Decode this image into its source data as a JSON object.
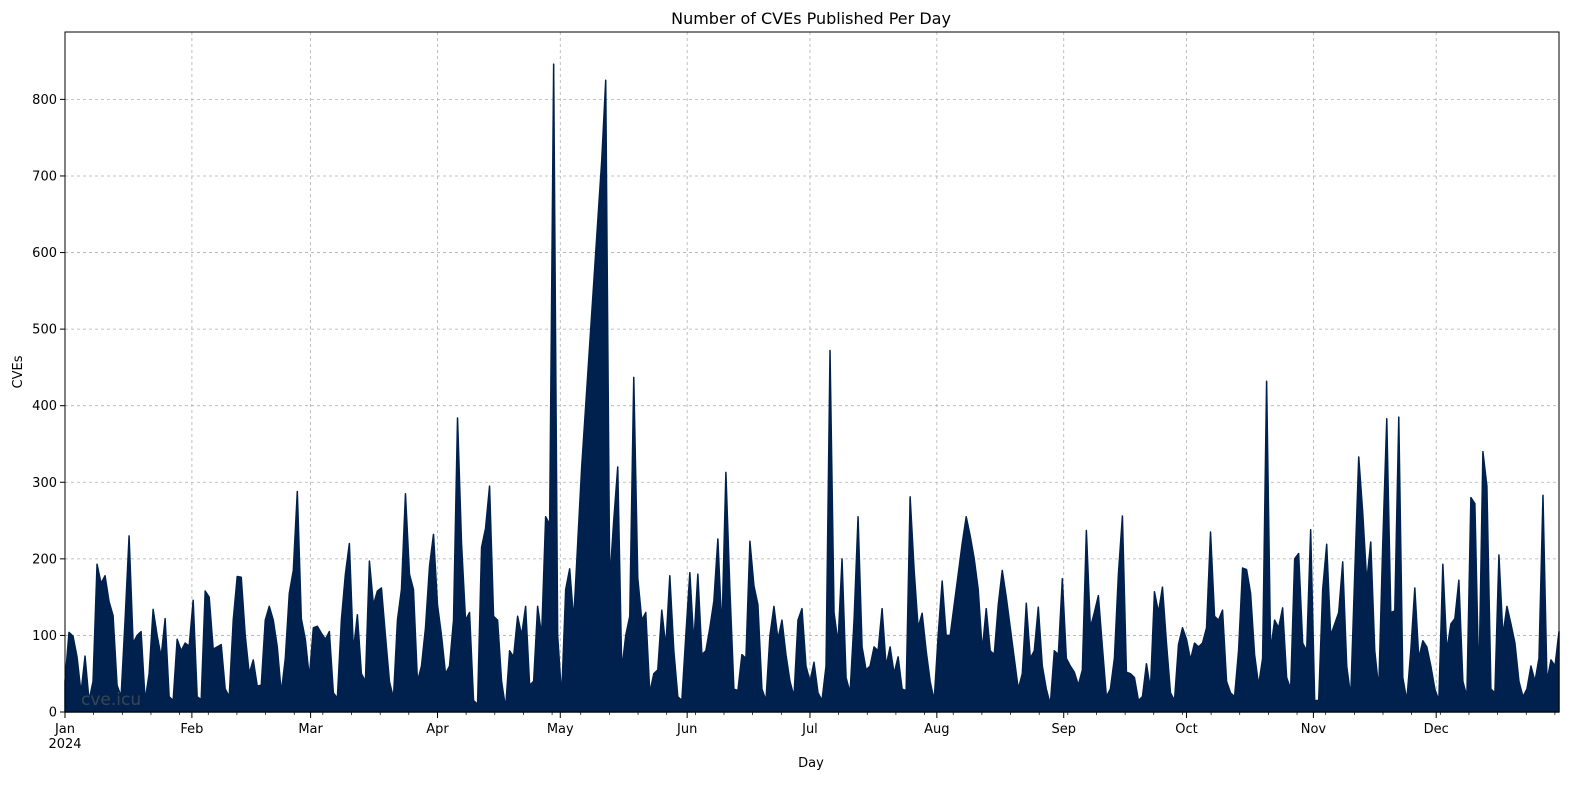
{
  "chart_data": {
    "type": "area",
    "title": "Number of CVEs Published Per Day",
    "xlabel": "Day",
    "ylabel": "CVEs",
    "year_label": "2024",
    "watermark": "cve.icu",
    "fill_color": "#00214d",
    "grid": true,
    "ylim": [
      0,
      888
    ],
    "xlim": [
      "2024-01-01",
      "2024-12-31"
    ],
    "yticks": [
      0,
      100,
      200,
      300,
      400,
      500,
      600,
      700,
      800
    ],
    "months": [
      {
        "label": "Jan",
        "date": "2024-01-01"
      },
      {
        "label": "Feb",
        "date": "2024-02-01"
      },
      {
        "label": "Mar",
        "date": "2024-03-01"
      },
      {
        "label": "Apr",
        "date": "2024-04-01"
      },
      {
        "label": "May",
        "date": "2024-05-01"
      },
      {
        "label": "Jun",
        "date": "2024-06-01"
      },
      {
        "label": "Jul",
        "date": "2024-07-01"
      },
      {
        "label": "Aug",
        "date": "2024-08-01"
      },
      {
        "label": "Sep",
        "date": "2024-09-01"
      },
      {
        "label": "Oct",
        "date": "2024-10-01"
      },
      {
        "label": "Nov",
        "date": "2024-11-01"
      },
      {
        "label": "Dec",
        "date": "2024-12-01"
      }
    ],
    "series": [
      {
        "values": [
          40,
          104,
          99,
          72,
          25,
          73,
          15,
          40,
          193,
          168,
          178,
          144,
          126,
          35,
          20,
          120,
          230,
          90,
          100,
          105,
          15,
          50,
          134,
          100,
          72,
          122,
          20,
          15,
          95,
          80,
          90,
          86,
          146,
          20,
          16,
          158,
          150,
          82,
          85,
          88,
          30,
          20,
          120,
          177,
          176,
          100,
          50,
          68,
          34,
          35,
          120,
          138,
          120,
          85,
          25,
          70,
          155,
          185,
          288,
          122,
          95,
          45,
          110,
          112,
          103,
          95,
          105,
          25,
          18,
          120,
          180,
          220,
          80,
          127,
          50,
          40,
          197,
          140,
          158,
          162,
          100,
          40,
          18,
          120,
          160,
          285,
          180,
          160,
          40,
          60,
          110,
          190,
          232,
          140,
          100,
          50,
          60,
          120,
          384,
          220,
          120,
          130,
          15,
          10,
          215,
          240,
          295,
          125,
          120,
          40,
          5,
          80,
          72,
          125,
          100,
          138,
          35,
          40,
          138,
          100,
          255,
          245,
          846,
          100,
          20,
          160,
          187,
          120,
          220,
          320,
          400,
          480,
          560,
          640,
          720,
          825,
          170,
          250,
          320,
          55,
          100,
          125,
          437,
          175,
          120,
          130,
          25,
          50,
          55,
          133,
          85,
          178,
          80,
          20,
          15,
          100,
          182,
          90,
          180,
          75,
          80,
          110,
          145,
          226,
          105,
          313,
          160,
          30,
          28,
          75,
          70,
          223,
          165,
          140,
          30,
          15,
          100,
          138,
          95,
          120,
          75,
          40,
          20,
          120,
          135,
          60,
          40,
          65,
          25,
          15,
          60,
          472,
          130,
          90,
          200,
          45,
          25,
          120,
          255,
          85,
          55,
          60,
          85,
          80,
          135,
          60,
          85,
          50,
          72,
          30,
          28,
          281,
          185,
          110,
          129,
          80,
          40,
          15,
          100,
          171,
          100,
          100,
          140,
          180,
          220,
          255,
          230,
          200,
          160,
          80,
          135,
          80,
          75,
          140,
          185,
          150,
          110,
          70,
          30,
          50,
          142,
          70,
          80,
          137,
          60,
          30,
          10,
          80,
          75,
          174,
          70,
          60,
          52,
          35,
          55,
          237,
          110,
          130,
          152,
          85,
          20,
          30,
          70,
          180,
          256,
          52,
          50,
          45,
          15,
          20,
          63,
          30,
          157,
          130,
          163,
          90,
          25,
          15,
          88,
          110,
          95,
          68,
          90,
          85,
          90,
          110,
          235,
          125,
          120,
          133,
          40,
          25,
          20,
          80,
          188,
          186,
          155,
          75,
          35,
          70,
          432,
          80,
          120,
          110,
          136,
          45,
          30,
          200,
          207,
          90,
          80,
          238,
          15,
          15,
          160,
          219,
          100,
          115,
          130,
          196,
          60,
          20,
          180,
          333,
          260,
          170,
          222,
          80,
          30,
          220,
          383,
          130,
          132,
          385,
          45,
          15,
          80,
          162,
          70,
          93,
          85,
          60,
          30,
          15,
          193,
          80,
          115,
          122,
          172,
          40,
          20,
          280,
          272,
          35,
          340,
          295,
          30,
          25,
          205,
          100,
          138,
          115,
          90,
          40,
          20,
          30,
          60,
          40,
          70,
          283,
          40,
          68,
          60,
          105
        ]
      }
    ]
  }
}
